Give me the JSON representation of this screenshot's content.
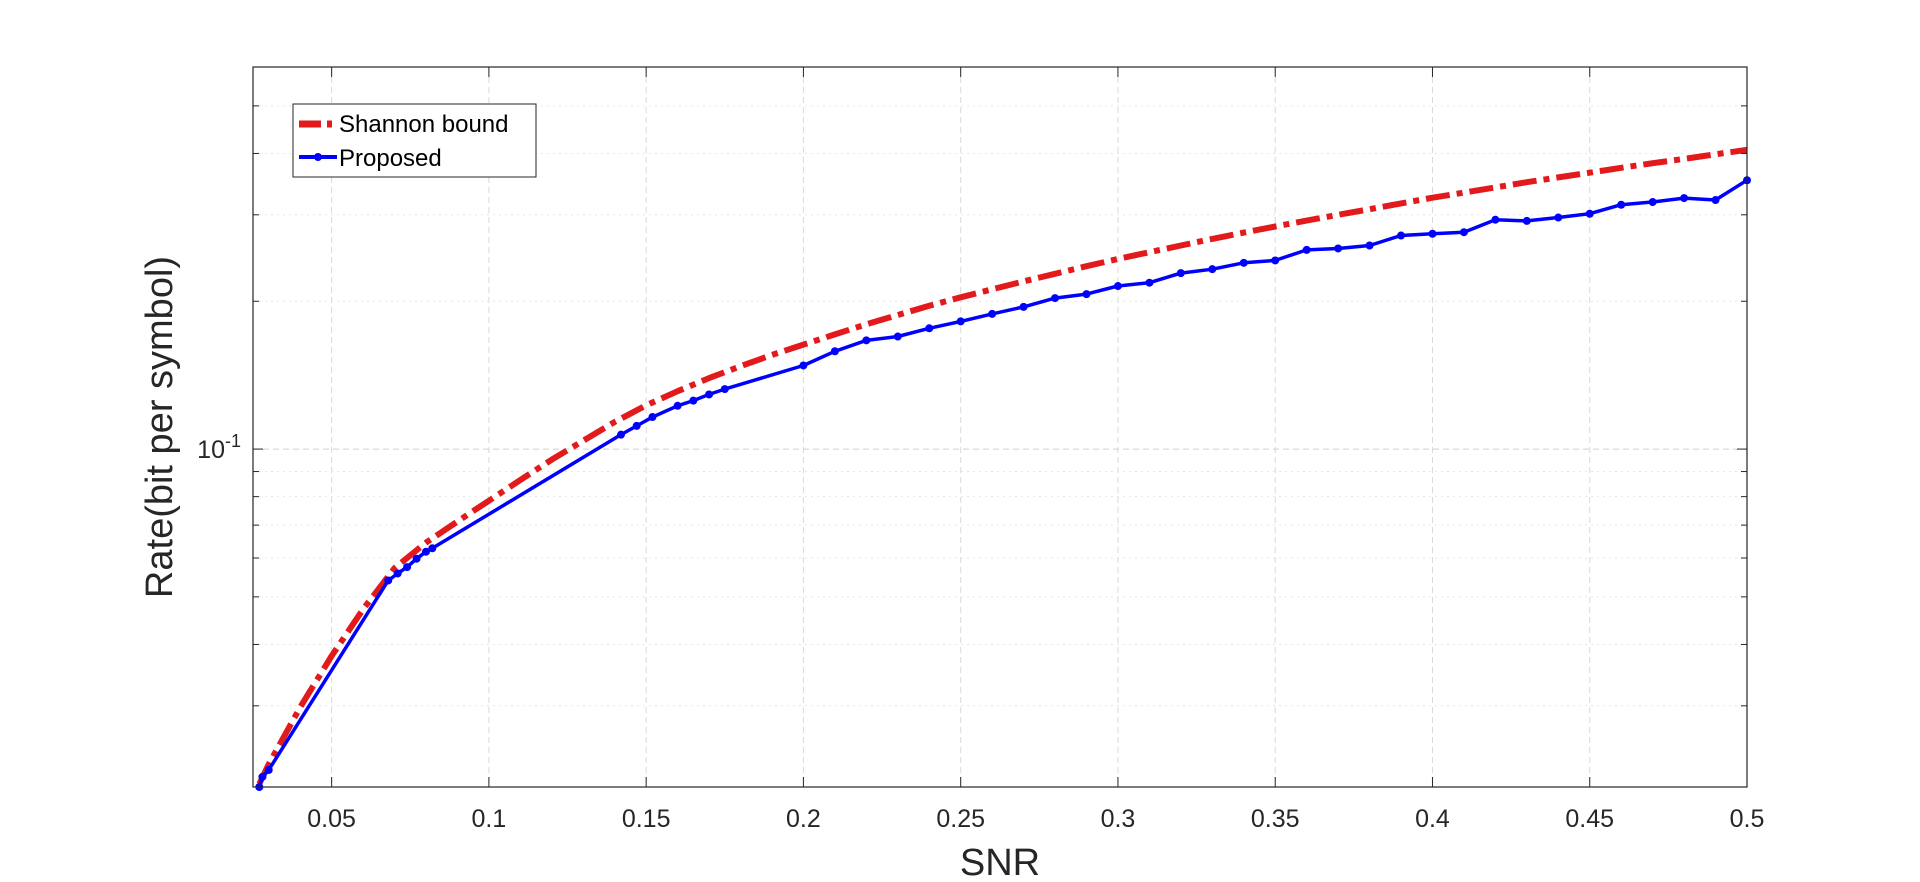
{
  "chart_data": {
    "type": "line",
    "title": "",
    "xlabel": "SNR",
    "ylabel": "Rate(bit per symbol)",
    "xlim": [
      0.025,
      0.5
    ],
    "ylim": [
      0.0205,
      0.6
    ],
    "yscale": "log",
    "grid": true,
    "legend_position": "top-left",
    "x_ticks": [
      "0.05",
      "0.1",
      "0.15",
      "0.2",
      "0.25",
      "0.3",
      "0.35",
      "0.4",
      "0.45",
      "0.5"
    ],
    "y_tick_base": "10",
    "y_tick_exponent": "-1",
    "series": [
      {
        "name": "Shannon bound",
        "color": "#e31a1c",
        "style": "dash-dot",
        "x": [
          0.027,
          0.03,
          0.04,
          0.05,
          0.06,
          0.07,
          0.08,
          0.09,
          0.1,
          0.11,
          0.12,
          0.13,
          0.14,
          0.15,
          0.16,
          0.17,
          0.18,
          0.19,
          0.2,
          0.21,
          0.22,
          0.23,
          0.24,
          0.25,
          0.26,
          0.27,
          0.28,
          0.29,
          0.3,
          0.31,
          0.32,
          0.33,
          0.34,
          0.35,
          0.36,
          0.37,
          0.38,
          0.39,
          0.4,
          0.41,
          0.42,
          0.43,
          0.44,
          0.45,
          0.46,
          0.47,
          0.48,
          0.49,
          0.5
        ],
        "y": [
          0.0208,
          0.0228,
          0.0298,
          0.0379,
          0.0472,
          0.0572,
          0.0645,
          0.0712,
          0.0785,
          0.0865,
          0.0952,
          0.104,
          0.1136,
          0.1228,
          0.1312,
          0.1395,
          0.1475,
          0.1555,
          0.1632,
          0.1712,
          0.1795,
          0.1875,
          0.1958,
          0.2038,
          0.2115,
          0.2195,
          0.2275,
          0.2358,
          0.2438,
          0.2518,
          0.2598,
          0.268,
          0.276,
          0.284,
          0.292,
          0.3,
          0.308,
          0.3165,
          0.325,
          0.333,
          0.3412,
          0.3495,
          0.3575,
          0.3655,
          0.374,
          0.3822,
          0.39,
          0.3985,
          0.407
        ]
      },
      {
        "name": "Proposed",
        "color": "#0000ff",
        "style": "solid-dot",
        "x": [
          0.027,
          0.028,
          0.03,
          0.068,
          0.071,
          0.074,
          0.077,
          0.08,
          0.082,
          0.142,
          0.147,
          0.152,
          0.16,
          0.165,
          0.17,
          0.175,
          0.2,
          0.21,
          0.22,
          0.23,
          0.24,
          0.25,
          0.26,
          0.27,
          0.28,
          0.29,
          0.3,
          0.31,
          0.32,
          0.33,
          0.34,
          0.35,
          0.36,
          0.37,
          0.38,
          0.39,
          0.4,
          0.41,
          0.42,
          0.43,
          0.44,
          0.45,
          0.46,
          0.47,
          0.48,
          0.49,
          0.5
        ],
        "y": [
          0.0205,
          0.0215,
          0.0222,
          0.054,
          0.0558,
          0.0575,
          0.0598,
          0.0618,
          0.0628,
          0.107,
          0.1115,
          0.1162,
          0.1225,
          0.1255,
          0.1292,
          0.1325,
          0.148,
          0.1582,
          0.1665,
          0.1695,
          0.1762,
          0.182,
          0.1885,
          0.1948,
          0.203,
          0.2068,
          0.2148,
          0.2182,
          0.2282,
          0.2325,
          0.2395,
          0.2422,
          0.2545,
          0.2562,
          0.2598,
          0.2722,
          0.2745,
          0.2765,
          0.2932,
          0.2915,
          0.2962,
          0.3015,
          0.3145,
          0.3185,
          0.3245,
          0.3215,
          0.3528
        ]
      }
    ]
  }
}
